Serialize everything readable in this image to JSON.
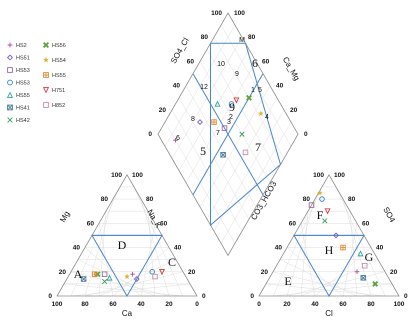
{
  "chart_data": {
    "type": "scatter",
    "subtype": "piper-trilinear",
    "left_ternary": {
      "axis_labels": {
        "left": "Mg",
        "bottom": "Ca",
        "right": "Na_K"
      },
      "tick_labels": [
        "100",
        "80",
        "60",
        "40",
        "20",
        "0"
      ]
    },
    "right_ternary": {
      "axis_labels": {
        "left": "CO3_HCO3",
        "bottom": "Cl",
        "right": "SO4"
      },
      "tick_labels": [
        "0",
        "20",
        "40",
        "60",
        "80",
        "100"
      ]
    },
    "diamond": {
      "axis_labels": {
        "upper_left": "SO4_Cl",
        "upper_right": "Ca_Mg"
      },
      "tick_labels": [
        "100",
        "80",
        "60",
        "40",
        "20",
        "0"
      ]
    },
    "zone_labels": {
      "left": [
        "A",
        "D",
        "C"
      ],
      "right": [
        "F",
        "H",
        "G",
        "E"
      ],
      "diamond": [
        "6",
        "9",
        "5",
        "7"
      ]
    },
    "sample_numbers": [
      "M",
      "10",
      "9",
      "12",
      "1",
      "5",
      "3",
      "2",
      "4",
      "8",
      "7",
      "6"
    ],
    "legend": [
      {
        "name": "HS2",
        "symbol": "plus",
        "color": "#b04ab0"
      },
      {
        "name": "HS51",
        "symbol": "diamond",
        "color": "#7a5cc0"
      },
      {
        "name": "HS53",
        "symbol": "square",
        "color": "#9a6aa0"
      },
      {
        "name": "HS53",
        "symbol": "circle",
        "color": "#3a7fc0"
      },
      {
        "name": "HS55",
        "symbol": "triangle-up",
        "color": "#36a0a0"
      },
      {
        "name": "HS41",
        "symbol": "square-x",
        "color": "#4a7a9a"
      },
      {
        "name": "HS42",
        "symbol": "x",
        "color": "#3a9a5a"
      },
      {
        "name": "HS56",
        "symbol": "x-thick",
        "color": "#5aa03a"
      },
      {
        "name": "HS54",
        "symbol": "star",
        "color": "#e0b030"
      },
      {
        "name": "HS55",
        "symbol": "square-plus",
        "color": "#e08a30"
      },
      {
        "name": "H751",
        "symbol": "triangle-down",
        "color": "#d04040"
      },
      {
        "name": "H852",
        "symbol": "square",
        "color": "#c090b0"
      }
    ],
    "points_left": [
      {
        "mg": 18,
        "na_k": 45,
        "s": 0
      },
      {
        "mg": 14,
        "na_k": 50,
        "s": 1
      },
      {
        "mg": 18,
        "na_k": 25,
        "s": 2
      },
      {
        "mg": 20,
        "na_k": 58,
        "s": 3
      },
      {
        "mg": 15,
        "na_k": 30,
        "s": 4
      },
      {
        "mg": 14,
        "na_k": 12,
        "s": 5
      },
      {
        "mg": 12,
        "na_k": 28,
        "s": 6
      },
      {
        "mg": 18,
        "na_k": 20,
        "s": 7
      },
      {
        "mg": 16,
        "na_k": 42,
        "s": 8
      },
      {
        "mg": 18,
        "na_k": 18,
        "s": 9
      },
      {
        "mg": 20,
        "na_k": 65,
        "s": 10
      },
      {
        "mg": 16,
        "na_k": 62,
        "s": 11
      }
    ],
    "points_right": [
      {
        "co3_hco3": 20,
        "so4": 20,
        "s": 0
      },
      {
        "co3_hco3": 20,
        "so4": 50,
        "s": 1
      },
      {
        "co3_hco3": 25,
        "so4": 75,
        "s": 2
      },
      {
        "co3_hco3": 15,
        "so4": 80,
        "s": 3
      },
      {
        "co3_hco3": 10,
        "so4": 35,
        "s": 4
      },
      {
        "co3_hco3": 18,
        "so4": 15,
        "s": 5
      },
      {
        "co3_hco3": 22,
        "so4": 62,
        "s": 6
      },
      {
        "co3_hco3": 12,
        "so4": 10,
        "s": 7
      },
      {
        "co3_hco3": 14,
        "so4": 85,
        "s": 8
      },
      {
        "co3_hco3": 20,
        "so4": 40,
        "s": 9
      },
      {
        "co3_hco3": 16,
        "so4": 70,
        "s": 10
      },
      {
        "co3_hco3": 12,
        "so4": 25,
        "s": 11
      }
    ],
    "points_diamond": [
      {
        "so4_cl": 85,
        "ca_mg": 10,
        "s": 0
      },
      {
        "so4_cl": 75,
        "ca_mg": 35,
        "s": 1
      },
      {
        "so4_cl": 55,
        "ca_mg": 50,
        "s": 2
      },
      {
        "so4_cl": 60,
        "ca_mg": 65,
        "s": 3
      },
      {
        "so4_cl": 70,
        "ca_mg": 55,
        "s": 4
      },
      {
        "so4_cl": 45,
        "ca_mg": 38,
        "s": 5
      },
      {
        "so4_cl": 40,
        "ca_mg": 60,
        "s": 6
      },
      {
        "so4_cl": 50,
        "ca_mg": 80,
        "s": 7
      },
      {
        "so4_cl": 35,
        "ca_mg": 82,
        "s": 8
      },
      {
        "so4_cl": 65,
        "ca_mg": 45,
        "s": 9
      },
      {
        "so4_cl": 58,
        "ca_mg": 70,
        "s": 10
      },
      {
        "so4_cl": 30,
        "ca_mg": 55,
        "s": 11
      }
    ]
  }
}
